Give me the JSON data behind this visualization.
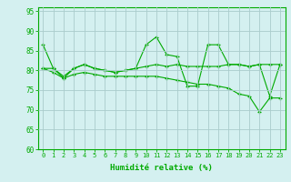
{
  "line1": [
    86.5,
    80.5,
    78.5,
    80.5,
    81.5,
    80.5,
    80.0,
    79.5,
    80.0,
    80.5,
    86.5,
    88.5,
    84.0,
    83.5,
    76.0,
    76.0,
    86.5,
    86.5,
    81.5,
    81.5,
    81.0,
    81.5,
    73.5,
    81.5
  ],
  "line2": [
    80.5,
    80.5,
    78.0,
    80.5,
    81.5,
    80.5,
    80.0,
    79.5,
    80.0,
    80.5,
    81.0,
    81.5,
    81.0,
    81.5,
    81.0,
    81.0,
    81.0,
    81.0,
    81.5,
    81.5,
    81.0,
    81.5,
    81.5,
    81.5
  ],
  "line3": [
    80.5,
    79.5,
    78.0,
    79.0,
    79.5,
    79.0,
    78.5,
    78.5,
    78.5,
    78.5,
    78.5,
    78.5,
    78.0,
    77.5,
    77.0,
    76.5,
    76.5,
    76.0,
    75.5,
    74.0,
    73.5,
    69.5,
    73.0,
    73.0
  ],
  "x": [
    0,
    1,
    2,
    3,
    4,
    5,
    6,
    7,
    8,
    9,
    10,
    11,
    12,
    13,
    14,
    15,
    16,
    17,
    18,
    19,
    20,
    21,
    22,
    23
  ],
  "line_color": "#00aa00",
  "bg_color": "#d4f0f0",
  "grid_color": "#aacccc",
  "xlabel": "Humidité relative (%)",
  "ylim": [
    60,
    96
  ],
  "yticks": [
    60,
    65,
    70,
    75,
    80,
    85,
    90,
    95
  ],
  "xtick_labels": [
    "0",
    "1",
    "2",
    "3",
    "4",
    "5",
    "6",
    "7",
    "8",
    "9",
    "10",
    "11",
    "12",
    "13",
    "14",
    "15",
    "16",
    "17",
    "18",
    "19",
    "20",
    "21",
    "22",
    "23"
  ]
}
